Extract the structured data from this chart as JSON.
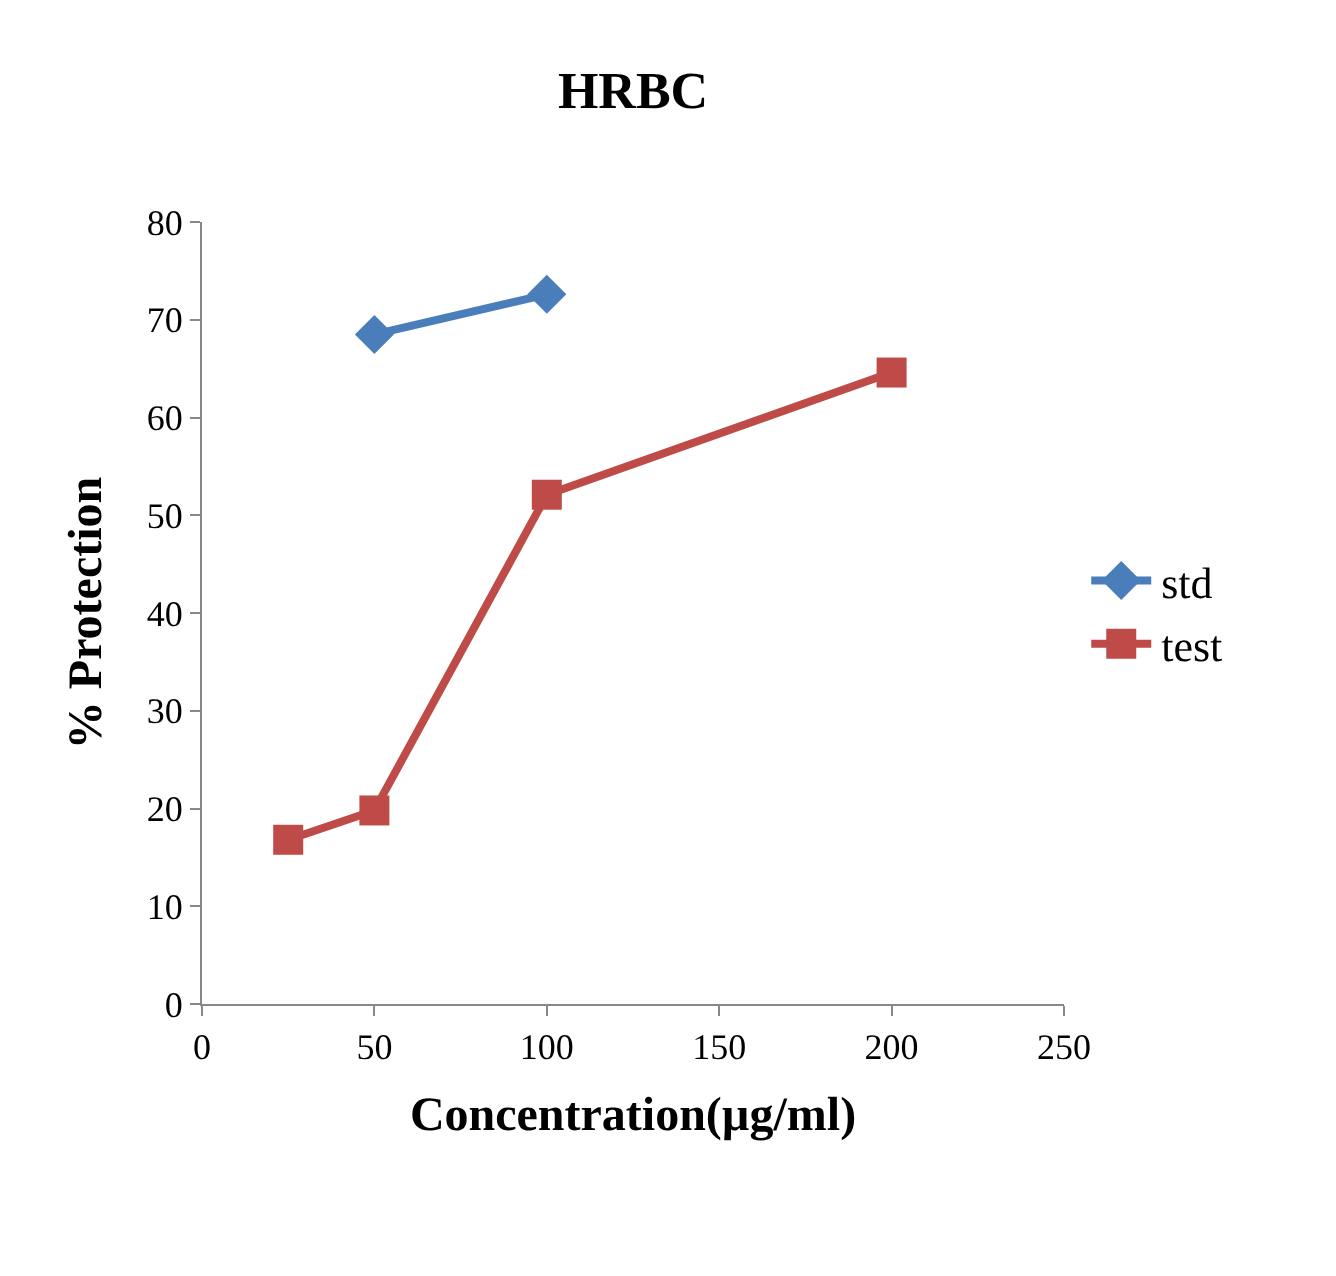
{
  "chart_data": {
    "type": "line",
    "title": "HRBC",
    "xlabel": "Concentration(µg/ml)",
    "ylabel": "% Protection",
    "series": [
      {
        "name": "std",
        "color": "#4a7ebb",
        "marker": "diamond",
        "x": [
          50,
          100
        ],
        "values": [
          68.5,
          72.6
        ]
      },
      {
        "name": "test",
        "color": "#be4b48",
        "marker": "square",
        "x": [
          25,
          50,
          100,
          200
        ],
        "values": [
          16.8,
          19.8,
          52.1,
          64.6
        ]
      }
    ],
    "xlim": [
      0,
      250
    ],
    "xticks": [
      0,
      50,
      100,
      150,
      200,
      250
    ],
    "ylim": [
      0,
      80
    ],
    "yticks": [
      0,
      10,
      20,
      30,
      40,
      50,
      60,
      70,
      80
    ],
    "legend": "right",
    "line_style": "solid"
  }
}
